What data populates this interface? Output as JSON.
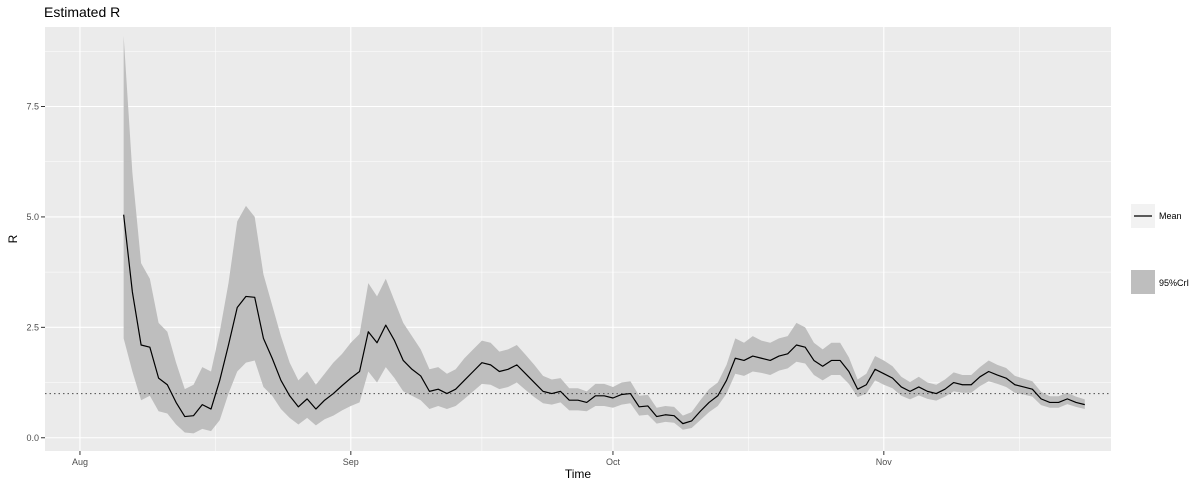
{
  "chart_data": {
    "type": "line",
    "title": "Estimated R",
    "xlabel": "Time",
    "ylabel": "R",
    "x_start": "2020-08-06",
    "x_end": "2020-11-23",
    "x_axis_range": [
      "2020-07-28",
      "2020-11-27"
    ],
    "x_ticks": [
      {
        "date": "2020-08-01",
        "label": "Aug"
      },
      {
        "date": "2020-09-01",
        "label": "Sep"
      },
      {
        "date": "2020-10-01",
        "label": "Oct"
      },
      {
        "date": "2020-11-01",
        "label": "Nov"
      }
    ],
    "ylim": [
      -0.3,
      9.3
    ],
    "y_ticks": [
      {
        "value": 0,
        "label": "0.0"
      },
      {
        "value": 2.5,
        "label": "2.5"
      },
      {
        "value": 5,
        "label": "5.0"
      },
      {
        "value": 7.5,
        "label": "7.5"
      }
    ],
    "reference_line": {
      "value": 1,
      "style": "dotted"
    },
    "grid": true,
    "legend_position": "right",
    "series": [
      {
        "name": "Mean",
        "color": "#000000",
        "values": [
          5.05,
          3.3,
          2.1,
          2.05,
          1.35,
          1.2,
          0.8,
          0.48,
          0.5,
          0.75,
          0.65,
          1.3,
          2.1,
          2.95,
          3.2,
          3.18,
          2.25,
          1.8,
          1.3,
          0.95,
          0.7,
          0.88,
          0.65,
          0.85,
          1.0,
          1.18,
          1.35,
          1.5,
          2.4,
          2.15,
          2.55,
          2.2,
          1.75,
          1.55,
          1.4,
          1.05,
          1.1,
          1.0,
          1.1,
          1.3,
          1.5,
          1.7,
          1.65,
          1.5,
          1.55,
          1.65,
          1.45,
          1.25,
          1.05,
          1.0,
          1.05,
          0.85,
          0.85,
          0.8,
          0.95,
          0.95,
          0.9,
          0.98,
          1.0,
          0.7,
          0.72,
          0.48,
          0.52,
          0.5,
          0.32,
          0.38,
          0.6,
          0.8,
          0.95,
          1.3,
          1.8,
          1.75,
          1.85,
          1.8,
          1.75,
          1.85,
          1.9,
          2.1,
          2.05,
          1.75,
          1.62,
          1.75,
          1.75,
          1.5,
          1.1,
          1.2,
          1.55,
          1.45,
          1.35,
          1.15,
          1.05,
          1.15,
          1.05,
          1.0,
          1.1,
          1.25,
          1.2,
          1.2,
          1.38,
          1.5,
          1.42,
          1.35,
          1.2,
          1.15,
          1.1,
          0.88,
          0.8,
          0.8,
          0.88,
          0.8,
          0.75
        ]
      },
      {
        "name": "95%CrI",
        "color": "#bebebe",
        "lower": [
          2.25,
          1.5,
          0.85,
          0.95,
          0.6,
          0.55,
          0.3,
          0.12,
          0.1,
          0.2,
          0.15,
          0.4,
          1.0,
          1.5,
          1.7,
          1.75,
          1.15,
          0.95,
          0.65,
          0.45,
          0.3,
          0.45,
          0.28,
          0.42,
          0.5,
          0.62,
          0.72,
          0.8,
          1.5,
          1.25,
          1.6,
          1.35,
          1.05,
          0.95,
          0.85,
          0.65,
          0.72,
          0.65,
          0.72,
          0.88,
          1.05,
          1.22,
          1.2,
          1.1,
          1.15,
          1.25,
          1.08,
          0.92,
          0.78,
          0.75,
          0.8,
          0.62,
          0.62,
          0.6,
          0.72,
          0.72,
          0.68,
          0.75,
          0.78,
          0.5,
          0.52,
          0.32,
          0.36,
          0.34,
          0.18,
          0.22,
          0.4,
          0.58,
          0.72,
          1.0,
          1.45,
          1.4,
          1.5,
          1.47,
          1.42,
          1.52,
          1.57,
          1.72,
          1.68,
          1.42,
          1.3,
          1.42,
          1.42,
          1.22,
          0.92,
          1.0,
          1.3,
          1.2,
          1.12,
          0.95,
          0.87,
          0.96,
          0.88,
          0.84,
          0.93,
          1.05,
          1.02,
          1.02,
          1.17,
          1.28,
          1.22,
          1.15,
          1.02,
          0.98,
          0.93,
          0.74,
          0.68,
          0.68,
          0.76,
          0.7,
          0.65
        ],
        "upper": [
          9.1,
          6.0,
          3.95,
          3.6,
          2.6,
          2.4,
          1.7,
          1.1,
          1.2,
          1.6,
          1.5,
          2.4,
          3.5,
          4.9,
          5.25,
          5.0,
          3.7,
          3.0,
          2.3,
          1.7,
          1.3,
          1.5,
          1.2,
          1.45,
          1.7,
          1.9,
          2.15,
          2.35,
          3.5,
          3.2,
          3.6,
          3.1,
          2.6,
          2.3,
          2.0,
          1.55,
          1.6,
          1.45,
          1.55,
          1.8,
          2.0,
          2.2,
          2.15,
          1.95,
          2.0,
          2.1,
          1.88,
          1.65,
          1.4,
          1.32,
          1.35,
          1.12,
          1.12,
          1.05,
          1.22,
          1.22,
          1.15,
          1.25,
          1.28,
          0.95,
          0.97,
          0.68,
          0.72,
          0.7,
          0.5,
          0.58,
          0.85,
          1.1,
          1.25,
          1.65,
          2.25,
          2.15,
          2.3,
          2.2,
          2.15,
          2.25,
          2.3,
          2.6,
          2.5,
          2.15,
          2.0,
          2.15,
          2.15,
          1.82,
          1.32,
          1.45,
          1.85,
          1.75,
          1.62,
          1.38,
          1.26,
          1.38,
          1.25,
          1.2,
          1.32,
          1.48,
          1.42,
          1.42,
          1.6,
          1.75,
          1.65,
          1.58,
          1.4,
          1.34,
          1.28,
          1.04,
          0.94,
          0.94,
          1.02,
          0.93,
          0.87
        ]
      }
    ]
  }
}
